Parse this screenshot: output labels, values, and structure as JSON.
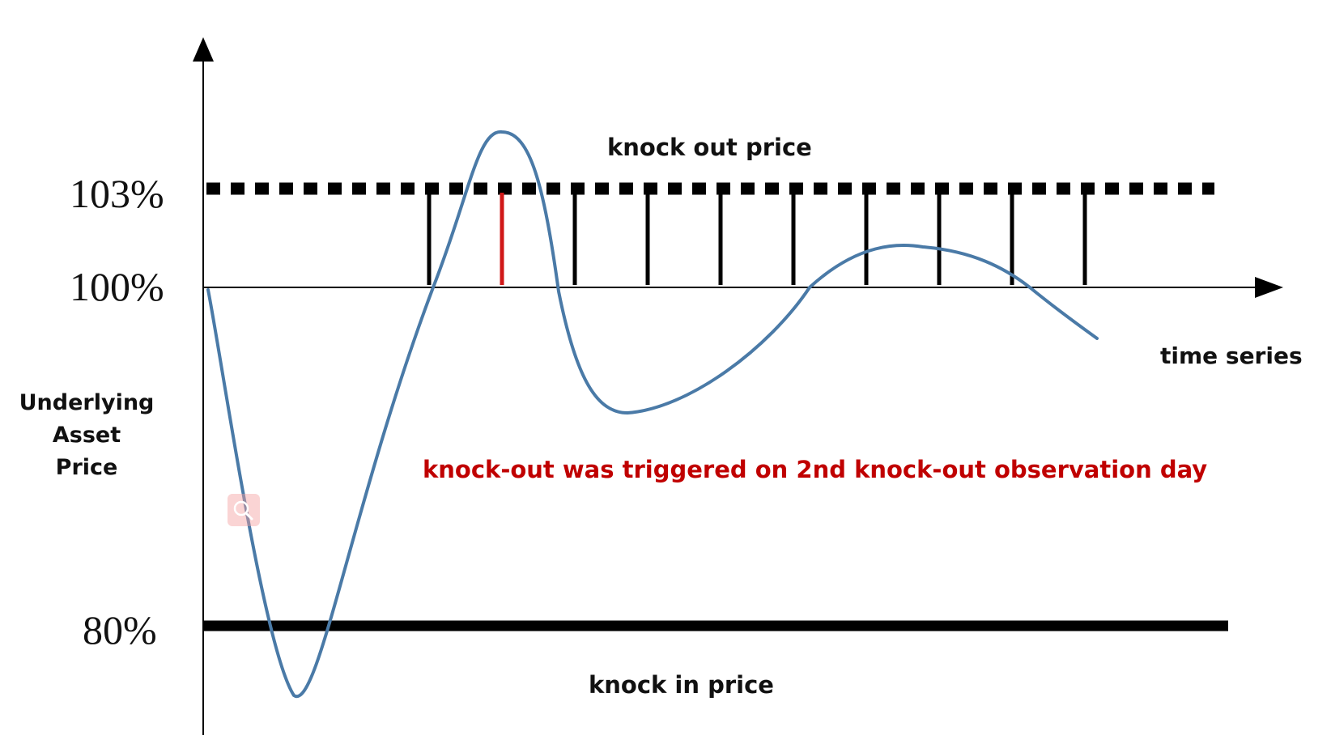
{
  "diagram": {
    "levels": [
      {
        "label": "103%",
        "value": 103,
        "style": "dotted",
        "caption": "knock out price"
      },
      {
        "label": "100%",
        "value": 100,
        "style": "axis"
      },
      {
        "label": "80%",
        "value": 80,
        "style": "solid",
        "caption": "knock in price"
      }
    ],
    "x_axis_label": "time series",
    "y_axis_label": [
      "Underlying",
      "Asset",
      "Price"
    ],
    "annotation": "knock-out was triggered on 2nd knock-out observation day",
    "observation_days": 10,
    "triggered_observation_day": 2,
    "colors": {
      "curve": "#4a7aa7",
      "trigger": "#d01818",
      "annotation": "#c00000",
      "axis": "#000000"
    },
    "icons": [
      "zoom-icon"
    ]
  }
}
